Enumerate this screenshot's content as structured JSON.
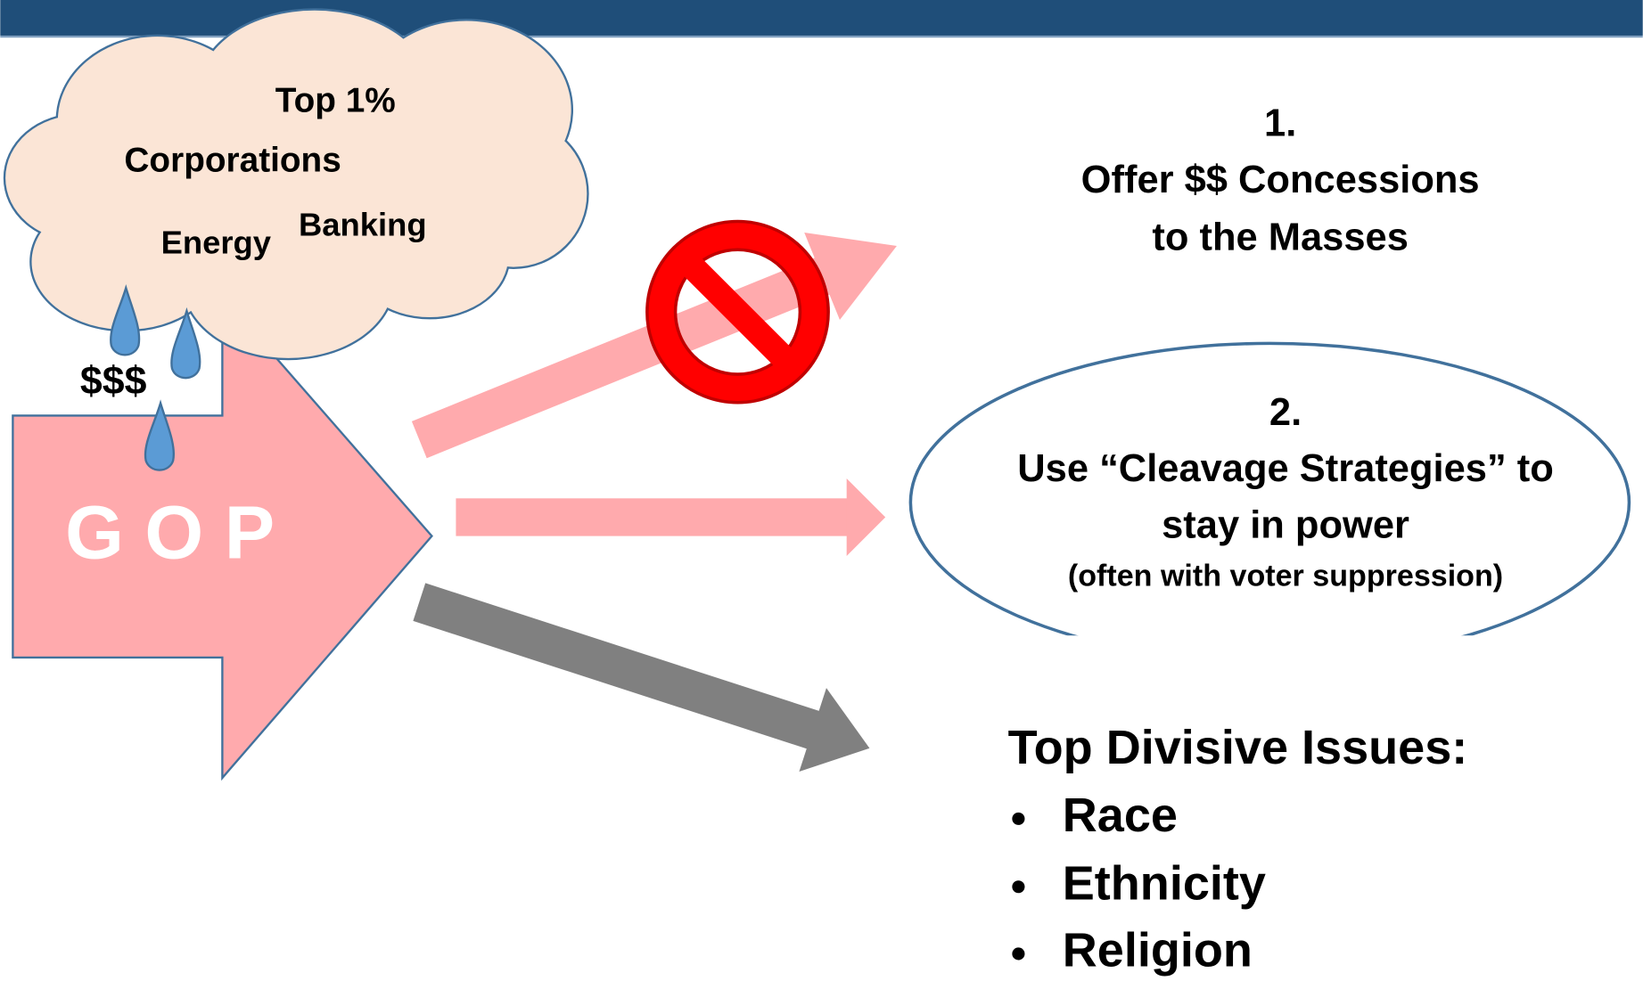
{
  "cloud": {
    "labels": [
      "Top 1%",
      "Corporations",
      "Energy",
      "Banking"
    ]
  },
  "money": "$$$",
  "gop": "G O P",
  "option1": {
    "number": "1.",
    "lines": [
      "Offer $$ Concessions",
      "to the Masses"
    ]
  },
  "option2": {
    "number": "2.",
    "lines": [
      "Use “Cleavage Strategies” to",
      "stay in power"
    ],
    "note": "(often with voter suppression)"
  },
  "issues": {
    "title": "Top Divisive Issues:",
    "items": [
      "Race",
      "Ethnicity",
      "Religion"
    ]
  }
}
